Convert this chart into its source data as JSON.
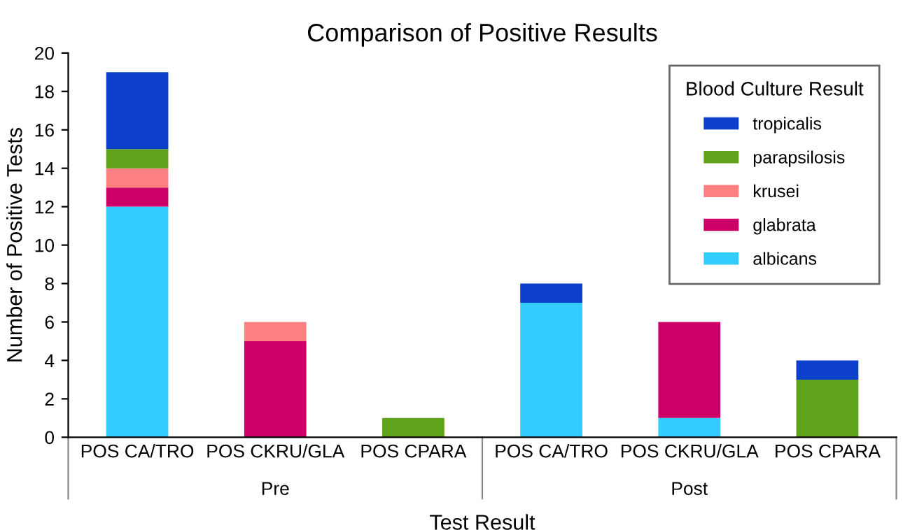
{
  "chart_data": {
    "type": "bar",
    "title": "Comparison of Positive Results",
    "xlabel": "Test Result",
    "ylabel": "Number of Positive Tests",
    "legend_title": "Blood Culture Result",
    "categories": [
      "POS CA/TRO",
      "POS CKRU/GLA",
      "POS CPARA",
      "POS CA/TRO",
      "POS CKRU/GLA",
      "POS CPARA"
    ],
    "annotations": [
      "Pre",
      "Post"
    ],
    "stacked": true,
    "series": [
      {
        "name": "albicans",
        "color": "#33ccff",
        "values": [
          12,
          0,
          0,
          7,
          1,
          0
        ]
      },
      {
        "name": "glabrata",
        "color": "#cc0066",
        "values": [
          1,
          5,
          0,
          0,
          5,
          0
        ]
      },
      {
        "name": "krusei",
        "color": "#ff8080",
        "values": [
          1,
          1,
          0,
          0,
          0,
          0
        ]
      },
      {
        "name": "parapsilosis",
        "color": "#5fa31a",
        "values": [
          1,
          0,
          1,
          0,
          0,
          3
        ]
      },
      {
        "name": "tropicalis",
        "color": "#0c3fcc",
        "values": [
          4,
          0,
          0,
          1,
          0,
          1
        ]
      }
    ],
    "ylim": [
      0,
      20
    ],
    "yticks": [
      0,
      2,
      4,
      6,
      8,
      10,
      12,
      14,
      16,
      18,
      20
    ],
    "grid": false,
    "legend": "top right"
  }
}
